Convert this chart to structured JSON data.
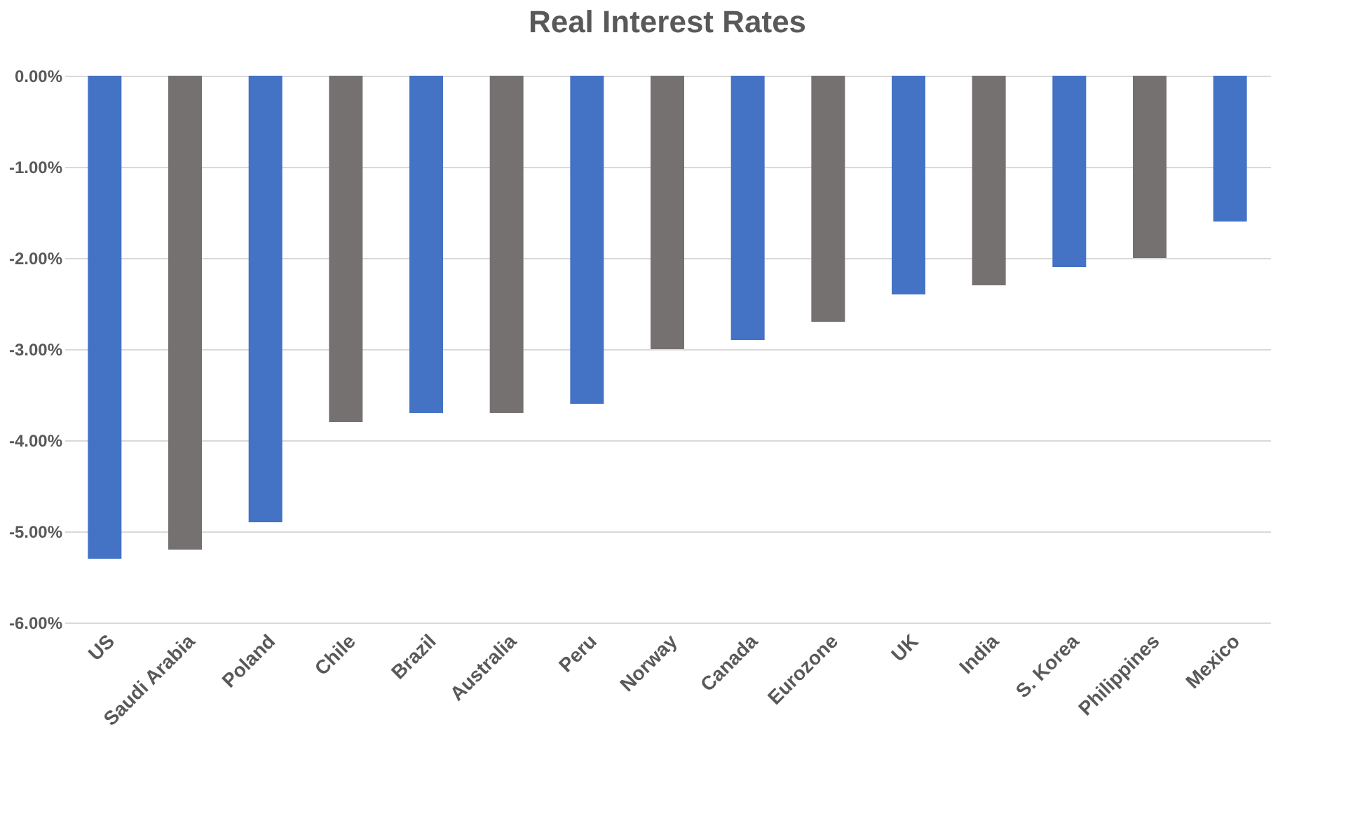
{
  "chart_data": {
    "type": "bar",
    "title": "Real Interest Rates",
    "categories": [
      "US",
      "Saudi Arabia",
      "Poland",
      "Chile",
      "Brazil",
      "Australia",
      "Peru",
      "Norway",
      "Canada",
      "Eurozone",
      "UK",
      "India",
      "S. Korea",
      "Philippines",
      "Mexico"
    ],
    "values": [
      -5.3,
      -5.2,
      -4.9,
      -3.8,
      -3.7,
      -3.7,
      -3.6,
      -3.0,
      -2.9,
      -2.7,
      -2.4,
      -2.3,
      -2.1,
      -2.0,
      -1.6
    ],
    "colors": [
      "#4472c4",
      "#767171",
      "#4472c4",
      "#767171",
      "#4472c4",
      "#767171",
      "#4472c4",
      "#767171",
      "#4472c4",
      "#767171",
      "#4472c4",
      "#767171",
      "#4472c4",
      "#767171",
      "#4472c4"
    ],
    "ylim": [
      -6,
      0
    ],
    "yticks": [
      {
        "value": 0,
        "label": "0.00%"
      },
      {
        "value": -1,
        "label": "-1.00%"
      },
      {
        "value": -2,
        "label": "-2.00%"
      },
      {
        "value": -3,
        "label": "-3.00%"
      },
      {
        "value": -4,
        "label": "-4.00%"
      },
      {
        "value": -5,
        "label": "-5.00%"
      },
      {
        "value": -6,
        "label": "-6.00%"
      }
    ],
    "grid": "y"
  }
}
